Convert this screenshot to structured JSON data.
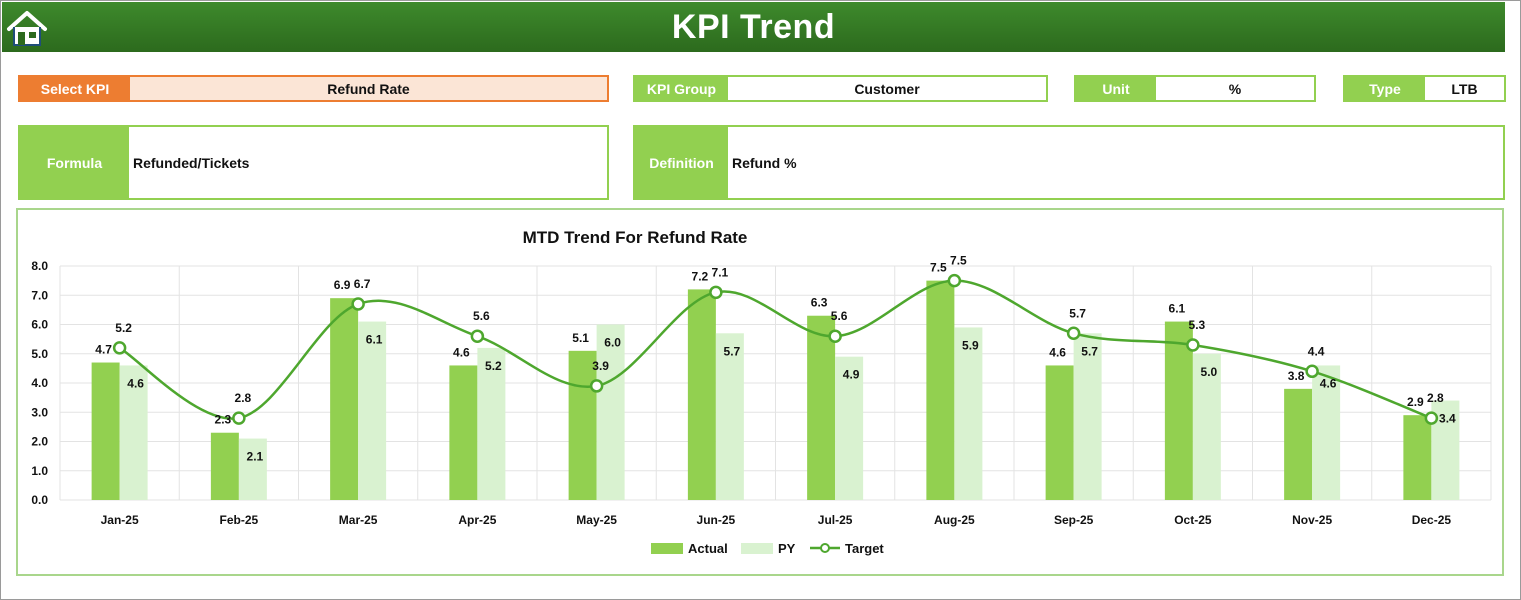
{
  "header": {
    "title": "KPI Trend"
  },
  "kpi_select": {
    "label": "Select KPI",
    "value": "Refund Rate"
  },
  "kpi_group": {
    "label": "KPI Group",
    "value": "Customer"
  },
  "unit": {
    "label": "Unit",
    "value": "%"
  },
  "type": {
    "label": "Type",
    "value": "LTB"
  },
  "formula": {
    "label": "Formula",
    "value": "Refunded/Tickets"
  },
  "definition": {
    "label": "Definition",
    "value": "Refund %"
  },
  "colors": {
    "header": "#2e6b1f",
    "accent": "#92d050",
    "select": "#ed7d31",
    "actual": "#92d050",
    "py": "#d9f2d0",
    "target": "#4ea72e"
  },
  "chart_data": {
    "type": "bar",
    "title": "MTD Trend For Refund Rate",
    "categories": [
      "Jan-25",
      "Feb-25",
      "Mar-25",
      "Apr-25",
      "May-25",
      "Jun-25",
      "Jul-25",
      "Aug-25",
      "Sep-25",
      "Oct-25",
      "Nov-25",
      "Dec-25"
    ],
    "series": [
      {
        "name": "Actual",
        "kind": "bar",
        "values": [
          4.7,
          2.3,
          6.9,
          4.6,
          5.1,
          7.2,
          6.3,
          7.5,
          4.6,
          6.1,
          3.8,
          2.9
        ]
      },
      {
        "name": "PY",
        "kind": "bar",
        "values": [
          4.6,
          2.1,
          6.1,
          5.2,
          6.0,
          5.7,
          4.9,
          5.9,
          5.7,
          5.0,
          4.6,
          3.4
        ]
      },
      {
        "name": "Target",
        "kind": "line",
        "values": [
          5.2,
          2.8,
          6.7,
          5.6,
          3.9,
          7.1,
          5.6,
          7.5,
          5.7,
          5.3,
          4.4,
          2.8
        ]
      }
    ],
    "ylim": [
      0,
      8
    ],
    "yticks": [
      "0.0",
      "1.0",
      "2.0",
      "3.0",
      "4.0",
      "5.0",
      "6.0",
      "7.0",
      "8.0"
    ],
    "grid": true,
    "legend": "bottom"
  }
}
